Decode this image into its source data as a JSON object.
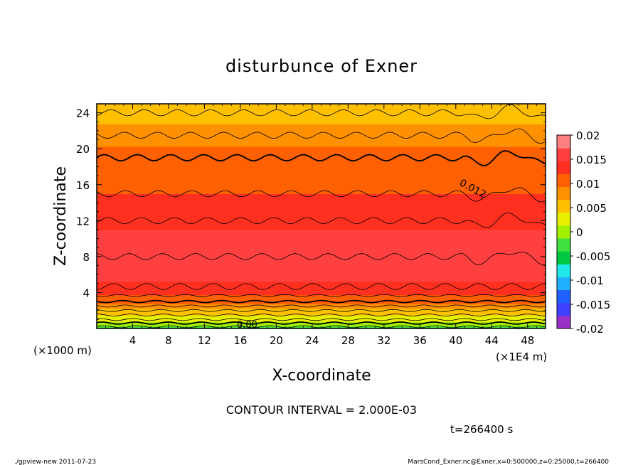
{
  "chart_data": {
    "type": "heatmap",
    "title": "disturbunce of Exner",
    "xlabel": "X-coordinate",
    "ylabel": "Z-coordinate",
    "x_unit_left": "(×1000 m)",
    "x_unit_right": "(×1E4 m)",
    "xlim": [
      0,
      50
    ],
    "ylim": [
      0,
      25
    ],
    "x_ticks": [
      "4",
      "8",
      "12",
      "16",
      "20",
      "24",
      "28",
      "32",
      "36",
      "40",
      "44",
      "48"
    ],
    "y_ticks": [
      "4",
      "8",
      "12",
      "16",
      "20",
      "24"
    ],
    "colorbar": {
      "range": [
        -0.02,
        0.02
      ],
      "tick_labels": [
        "0.02",
        "0.015",
        "0.01",
        "0.005",
        "0",
        "-0.005",
        "-0.01",
        "-0.015",
        "-0.02"
      ]
    },
    "contour_labels": [
      "0.012",
      "0.00"
    ],
    "contour_interval_text": "CONTOUR INTERVAL = 2.000E-03",
    "time_text": "t=266400 s",
    "profile": {
      "z": [
        0,
        1,
        2,
        3,
        4,
        5,
        6,
        8,
        10,
        12,
        14,
        16,
        18,
        20,
        22,
        23,
        24,
        25
      ],
      "value": [
        -0.003,
        0.002,
        0.006,
        0.01,
        0.013,
        0.0145,
        0.0155,
        0.016,
        0.0155,
        0.014,
        0.0125,
        0.0115,
        0.0105,
        0.0095,
        0.0075,
        0.0065,
        0.006,
        0.005
      ]
    }
  },
  "footer": {
    "left": "./gpview-new  2011-07-23",
    "right": "MarsCond_Exner.nc@Exner,x=0:500000,z=0:25000,t=266400"
  },
  "colors": {
    "palette": [
      "#9b30c8",
      "#4040ff",
      "#2060ff",
      "#20b0ff",
      "#20e8e8",
      "#00c840",
      "#40e040",
      "#a0f000",
      "#e8f000",
      "#ffc000",
      "#ff9000",
      "#ff6000",
      "#ff3020",
      "#ff4040",
      "#ff8080"
    ]
  }
}
